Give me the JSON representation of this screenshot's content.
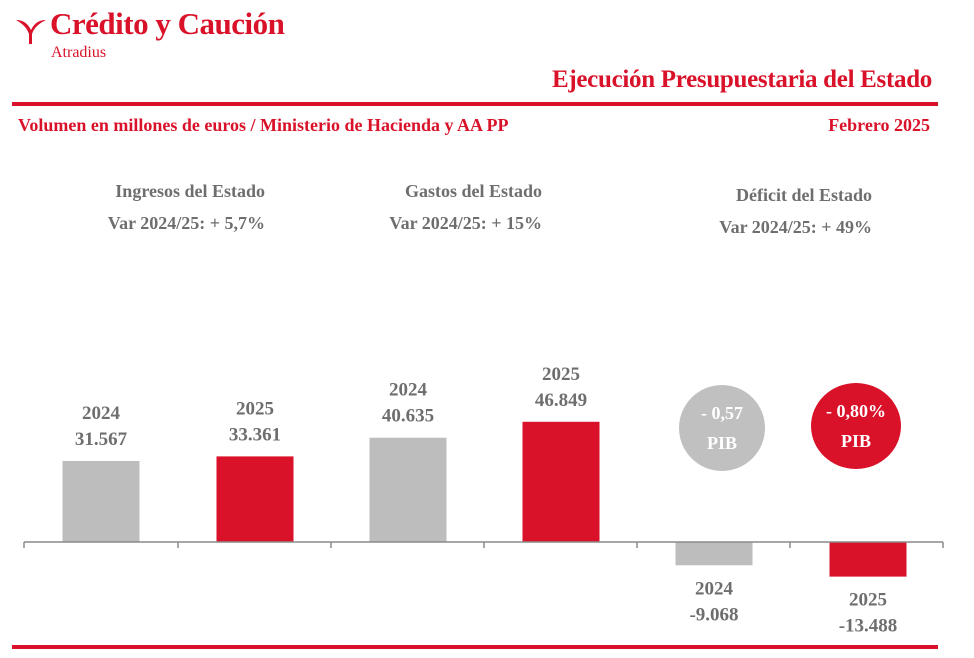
{
  "brand": {
    "name": "Crédito y Caución",
    "sub": "Atradius"
  },
  "header": {
    "title": "Ejecución Presupuestaria del Estado",
    "subtitle": "Volumen en millones de euros  / Ministerio de Hacienda y AA PP",
    "date": "Febrero 2025"
  },
  "groups": [
    {
      "title": "Ingresos del Estado",
      "variation": "Var 2024/25: + 5,7%"
    },
    {
      "title": "Gastos del Estado",
      "variation": "Var 2024/25: + 15%"
    },
    {
      "title": "Déficit del Estado",
      "variation": "Var 2024/25: + 49%"
    }
  ],
  "pib": [
    {
      "value": "- 0,57",
      "unit": "PIB",
      "color": "#c0c0c0"
    },
    {
      "value": "- 0,80%",
      "unit": "PIB",
      "color": "#d9122a"
    }
  ],
  "colors": {
    "accent": "#d9122a",
    "grey": "#bdbdbd",
    "text_grey": "#6e6e6e"
  },
  "chart_data": {
    "type": "bar",
    "categories": [
      "2024",
      "2025",
      "2024",
      "2025",
      "2024",
      "2025"
    ],
    "values": [
      31567,
      33361,
      40635,
      46849,
      -9068,
      -13488
    ],
    "labels": [
      "31.567",
      "33.361",
      "40.635",
      "46.849",
      "-9.068",
      "-13.488"
    ],
    "colors": [
      "#bdbdbd",
      "#d9122a",
      "#bdbdbd",
      "#d9122a",
      "#bdbdbd",
      "#d9122a"
    ],
    "grid": false
  }
}
